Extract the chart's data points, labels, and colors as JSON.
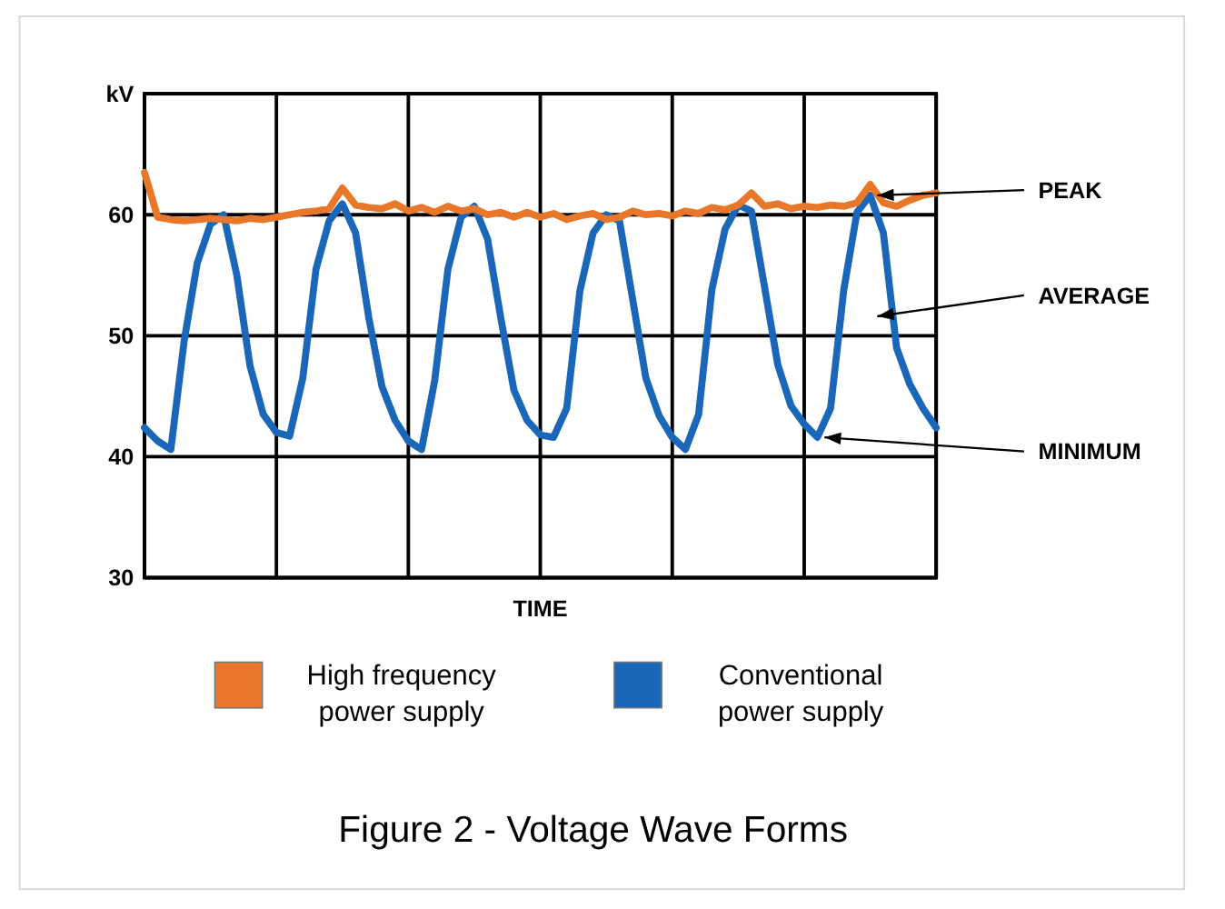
{
  "chart_data": {
    "type": "line",
    "title": "Figure 2 - Voltage Wave Forms",
    "xlabel": "TIME",
    "categories": [
      null,
      null,
      null,
      null,
      null,
      null,
      null,
      null,
      null,
      null,
      null,
      null,
      null,
      null,
      null,
      null,
      null,
      null,
      null,
      null,
      null,
      null,
      null,
      null,
      null,
      null,
      null,
      null,
      null,
      null,
      null,
      null,
      null,
      null,
      null,
      null,
      null,
      null,
      null,
      null,
      null,
      null,
      null,
      null,
      null,
      null,
      null,
      null,
      null,
      null,
      null,
      null,
      null,
      null,
      null,
      null,
      null,
      null,
      null,
      null,
      null
    ],
    "ylim": [
      30,
      70
    ],
    "yticks": [
      30,
      40,
      50,
      60,
      {
        "value": 70,
        "label": "kV"
      }
    ],
    "grid": true,
    "legend": "bottom",
    "marker": "none",
    "line_style": "solid",
    "annotations": [
      "PEAK",
      "AVERAGE",
      "MINIMUM"
    ],
    "series": [
      {
        "name": "High frequency power supply",
        "color": "#e8772a",
        "values": [
          63.5,
          59.8,
          59.6,
          59.5,
          59.6,
          59.7,
          59.6,
          59.5,
          59.7,
          59.6,
          59.8,
          60,
          60.2,
          60.3,
          60.5,
          62.2,
          60.8,
          60.6,
          60.5,
          60.9,
          60.3,
          60.6,
          60.2,
          60.7,
          60.3,
          60.5,
          60,
          60.2,
          59.8,
          60.2,
          59.8,
          60.1,
          59.6,
          59.9,
          60.1,
          59.6,
          59.8,
          60.3,
          60,
          60.1,
          59.9,
          60.3,
          60.1,
          60.6,
          60.4,
          60.8,
          61.8,
          60.7,
          60.9,
          60.5,
          60.7,
          60.6,
          60.8,
          60.7,
          61,
          62.5,
          61,
          60.7,
          61.2,
          61.6,
          61.8
        ]
      },
      {
        "name": "Conventional power supply",
        "color": "#1a66b8",
        "values": [
          42.4,
          41.3,
          40.6,
          49.5,
          56,
          59.2,
          60,
          55,
          47.5,
          43.5,
          42,
          41.7,
          46.5,
          55.5,
          59.5,
          60.9,
          58.5,
          51.5,
          45.8,
          43,
          41.3,
          40.6,
          46.3,
          55.5,
          59.8,
          60.7,
          58,
          51.5,
          45.5,
          43,
          41.8,
          41.6,
          44,
          53.7,
          58.5,
          60,
          59.5,
          53,
          46.5,
          43.4,
          41.6,
          40.6,
          43.5,
          53.8,
          58.8,
          60.8,
          60.3,
          54,
          47.6,
          44.2,
          42.7,
          41.6,
          44,
          53.8,
          60.2,
          61.6,
          58.5,
          49,
          46,
          44,
          42.4
        ]
      }
    ]
  }
}
